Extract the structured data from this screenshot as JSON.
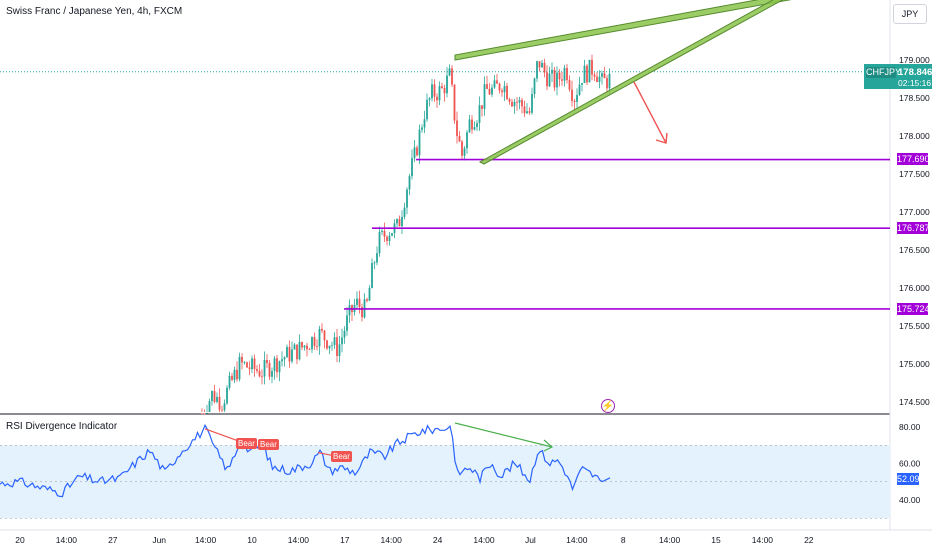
{
  "header": {
    "title": "Swiss Franc / Japanese Yen, 4h, FXCM",
    "currency": "JPY"
  },
  "price_tag": {
    "symbol": "CHFJPY",
    "value": "178.846",
    "countdown": "02:15:16"
  },
  "levels": [
    {
      "label": "177.690",
      "value": 177.69
    },
    {
      "label": "176.787",
      "value": 176.787
    },
    {
      "label": "175.724",
      "value": 175.724
    }
  ],
  "rsi_panel": {
    "title": "RSI Divergence Indicator",
    "value_label": "52.09",
    "bear_labels": [
      "Bear",
      "Bear",
      "Bear"
    ]
  },
  "colors": {
    "up": "#26a69a",
    "down": "#ef5350",
    "level": "#a300d9",
    "wedge": "#8bc34a",
    "rsi_line": "#2962ff",
    "rsi_band": "#e3f2fd",
    "arrow_red": "#f05350",
    "arrow_green": "#4caf50"
  },
  "icons": [
    "flash-icon"
  ],
  "chart_data": [
    {
      "type": "candlestick",
      "title": "Swiss Franc / Japanese Yen, 4h, FXCM",
      "y_axis": {
        "ticks": [
          "179.000",
          "178.500",
          "178.000",
          "177.500",
          "177.000",
          "176.500",
          "176.000",
          "175.500",
          "175.000",
          "174.500"
        ],
        "ylim": [
          174.35,
          179.3
        ]
      },
      "x_axis": {
        "ticks": [
          "20",
          "14:00",
          "27",
          "Jun",
          "14:00",
          "10",
          "14:00",
          "17",
          "14:00",
          "24",
          "14:00",
          "Jul",
          "14:00",
          "8",
          "14:00",
          "15",
          "14:00",
          "22"
        ]
      },
      "last_price": 178.846,
      "horizontal_levels": [
        177.69,
        176.787,
        175.724
      ],
      "rising_wedge": {
        "upper": [
          [
            179.05,
            0.0
          ],
          [
            179.45,
            1.0
          ]
        ],
        "lower": [
          [
            177.65,
            0.0
          ],
          [
            179.4,
            1.0
          ]
        ]
      }
    },
    {
      "type": "line",
      "title": "RSI Divergence Indicator",
      "y_axis": {
        "ticks": [
          "80.00",
          "60.00",
          "40.00"
        ],
        "ylim": [
          25,
          87
        ]
      },
      "band": [
        30,
        70
      ],
      "last_value": 52.09
    }
  ]
}
